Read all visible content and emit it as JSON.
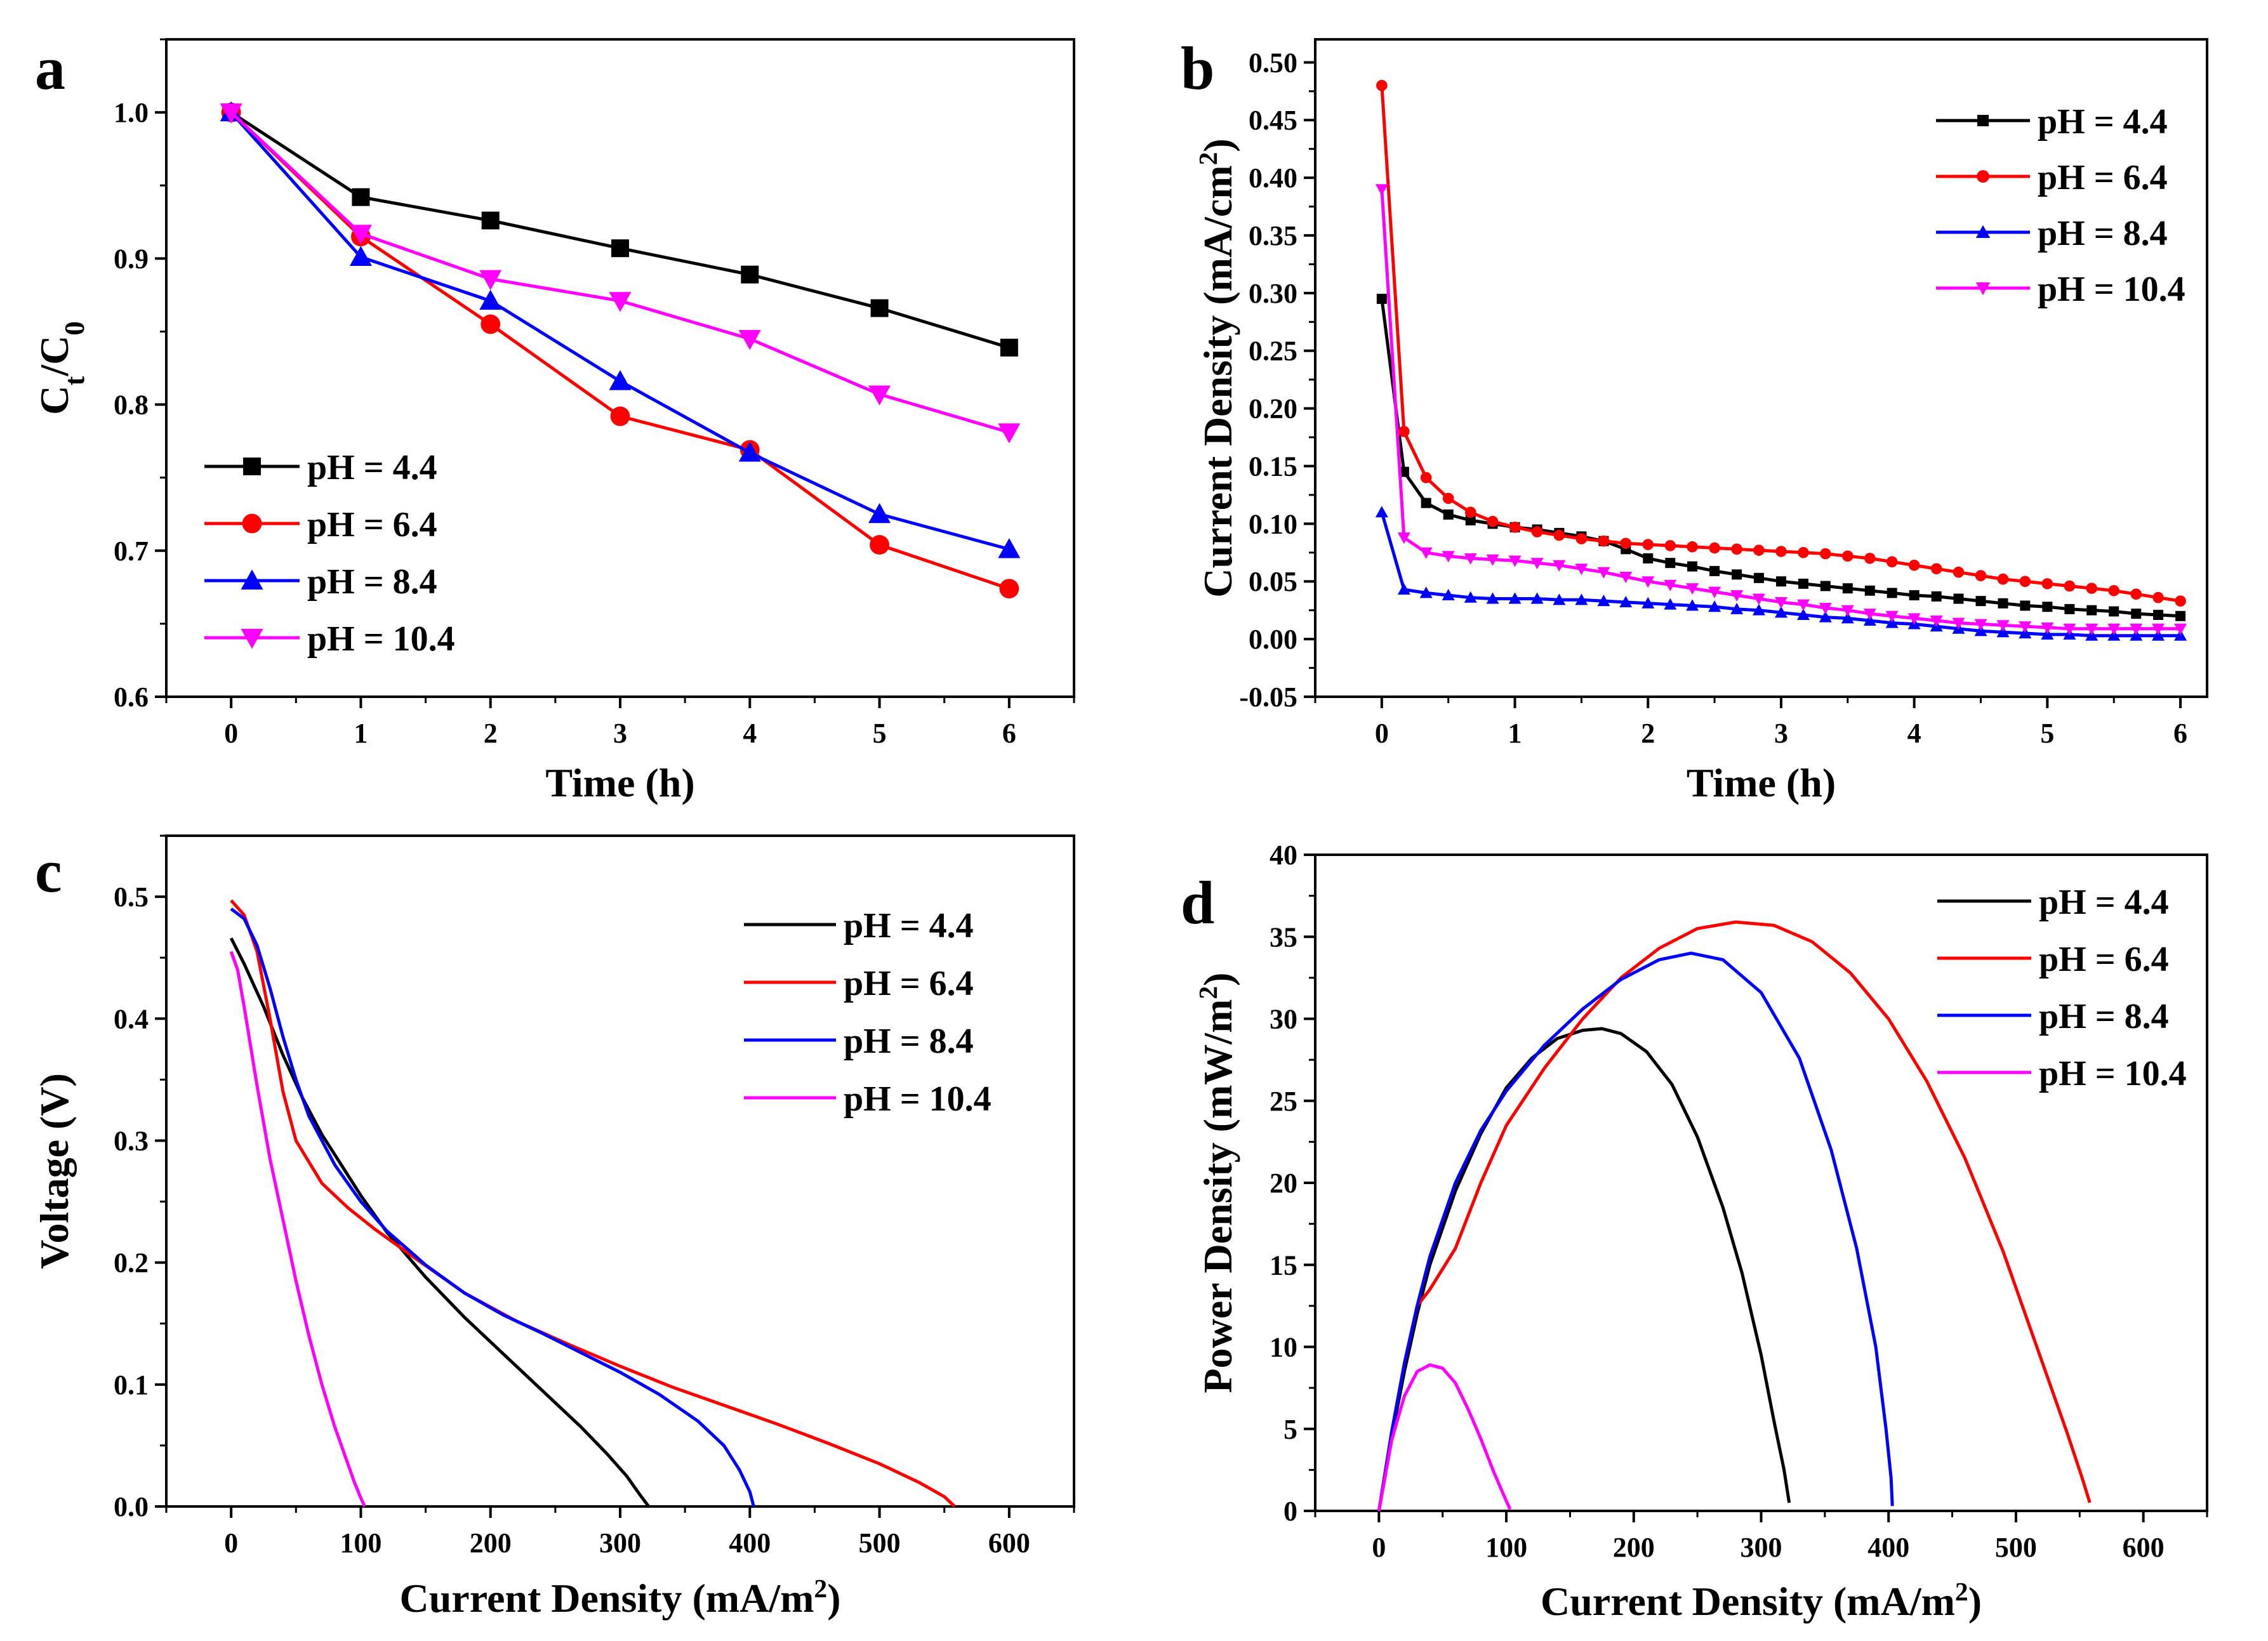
{
  "chart_data": [
    {
      "id": "a",
      "panel_letter": "a",
      "type": "line",
      "xlabel": "Time (h)",
      "ylabel": {
        "base": "C",
        "sub1": "t",
        "sep": "/C",
        "sub2": "0"
      },
      "xlim": [
        -0.5,
        6.5
      ],
      "ylim": [
        0.6,
        1.05
      ],
      "xticks": [
        0,
        1,
        2,
        3,
        4,
        5,
        6
      ],
      "yticks": [
        0.6,
        0.7,
        0.8,
        0.9,
        1.0
      ],
      "ytick_labels": [
        "0.6",
        "0.7",
        "0.8",
        "0.9",
        "1.0"
      ],
      "legend_position": "bottom-left",
      "series": [
        {
          "name": "pH = 4.4",
          "color": "#000000",
          "marker": "square",
          "x": [
            0,
            1,
            2,
            3,
            4,
            5,
            6
          ],
          "y": [
            1.0,
            0.942,
            0.926,
            0.907,
            0.889,
            0.866,
            0.839
          ]
        },
        {
          "name": "pH = 6.4",
          "color": "#ff0000",
          "marker": "circle",
          "x": [
            0,
            1,
            2,
            3,
            4,
            5,
            6
          ],
          "y": [
            1.0,
            0.915,
            0.855,
            0.792,
            0.769,
            0.704,
            0.674
          ]
        },
        {
          "name": "pH = 8.4",
          "color": "#0000ff",
          "marker": "triangle-up",
          "x": [
            0,
            1,
            2,
            3,
            4,
            5,
            6
          ],
          "y": [
            1.0,
            0.901,
            0.871,
            0.816,
            0.767,
            0.725,
            0.701
          ]
        },
        {
          "name": "pH = 10.4",
          "color": "#ff00ff",
          "marker": "triangle-down",
          "x": [
            0,
            1,
            2,
            3,
            4,
            5,
            6
          ],
          "y": [
            1.0,
            0.917,
            0.886,
            0.871,
            0.845,
            0.807,
            0.781
          ]
        }
      ]
    },
    {
      "id": "b",
      "panel_letter": "b",
      "type": "line",
      "xlabel": "Time (h)",
      "ylabel": {
        "base": "Current Density (mA/cm",
        "sup": "2",
        "end": ")"
      },
      "xlim": [
        -0.5,
        6.2
      ],
      "ylim": [
        -0.05,
        0.52
      ],
      "xticks": [
        0,
        1,
        2,
        3,
        4,
        5,
        6
      ],
      "yticks": [
        -0.05,
        0.0,
        0.05,
        0.1,
        0.15,
        0.2,
        0.25,
        0.3,
        0.35,
        0.4,
        0.45,
        0.5
      ],
      "ytick_labels": [
        "-0.05",
        "0.00",
        "0.05",
        "0.10",
        "0.15",
        "0.20",
        "0.25",
        "0.30",
        "0.35",
        "0.40",
        "0.45",
        "0.50"
      ],
      "legend_position": "top-right",
      "series": [
        {
          "name": "pH = 4.4",
          "color": "#000000",
          "marker": "square",
          "x": [
            0,
            0.167,
            0.333,
            0.5,
            0.667,
            0.833,
            1.0,
            1.167,
            1.333,
            1.5,
            1.667,
            1.833,
            2.0,
            2.167,
            2.333,
            2.5,
            2.667,
            2.833,
            3.0,
            3.167,
            3.333,
            3.5,
            3.667,
            3.833,
            4.0,
            4.167,
            4.333,
            4.5,
            4.667,
            4.833,
            5.0,
            5.167,
            5.333,
            5.5,
            5.667,
            5.833,
            6.0
          ],
          "y": [
            0.295,
            0.145,
            0.118,
            0.108,
            0.103,
            0.1,
            0.097,
            0.095,
            0.092,
            0.089,
            0.085,
            0.078,
            0.07,
            0.066,
            0.063,
            0.059,
            0.056,
            0.053,
            0.05,
            0.048,
            0.046,
            0.044,
            0.042,
            0.04,
            0.038,
            0.037,
            0.035,
            0.033,
            0.031,
            0.029,
            0.028,
            0.026,
            0.025,
            0.024,
            0.022,
            0.021,
            0.02
          ]
        },
        {
          "name": "pH = 6.4",
          "color": "#ff0000",
          "marker": "circle",
          "x": [
            0,
            0.167,
            0.333,
            0.5,
            0.667,
            0.833,
            1.0,
            1.167,
            1.333,
            1.5,
            1.667,
            1.833,
            2.0,
            2.167,
            2.333,
            2.5,
            2.667,
            2.833,
            3.0,
            3.167,
            3.333,
            3.5,
            3.667,
            3.833,
            4.0,
            4.167,
            4.333,
            4.5,
            4.667,
            4.833,
            5.0,
            5.167,
            5.333,
            5.5,
            5.667,
            5.833,
            6.0
          ],
          "y": [
            0.48,
            0.18,
            0.14,
            0.122,
            0.11,
            0.102,
            0.097,
            0.093,
            0.09,
            0.087,
            0.085,
            0.083,
            0.082,
            0.081,
            0.08,
            0.079,
            0.078,
            0.077,
            0.076,
            0.075,
            0.074,
            0.072,
            0.07,
            0.067,
            0.064,
            0.061,
            0.058,
            0.055,
            0.052,
            0.05,
            0.048,
            0.046,
            0.044,
            0.042,
            0.039,
            0.036,
            0.033
          ]
        },
        {
          "name": "pH = 8.4",
          "color": "#0000ff",
          "marker": "triangle-up",
          "x": [
            0,
            0.167,
            0.333,
            0.5,
            0.667,
            0.833,
            1.0,
            1.167,
            1.333,
            1.5,
            1.667,
            1.833,
            2.0,
            2.167,
            2.333,
            2.5,
            2.667,
            2.833,
            3.0,
            3.167,
            3.333,
            3.5,
            3.667,
            3.833,
            4.0,
            4.167,
            4.333,
            4.5,
            4.667,
            4.833,
            5.0,
            5.167,
            5.333,
            5.5,
            5.667,
            5.833,
            6.0
          ],
          "y": [
            0.11,
            0.043,
            0.04,
            0.038,
            0.036,
            0.035,
            0.035,
            0.035,
            0.034,
            0.034,
            0.033,
            0.032,
            0.031,
            0.03,
            0.029,
            0.028,
            0.026,
            0.025,
            0.023,
            0.021,
            0.019,
            0.018,
            0.016,
            0.014,
            0.013,
            0.011,
            0.009,
            0.007,
            0.006,
            0.005,
            0.004,
            0.004,
            0.003,
            0.003,
            0.003,
            0.003,
            0.003
          ]
        },
        {
          "name": "pH = 10.4",
          "color": "#ff00ff",
          "marker": "triangle-down",
          "x": [
            0,
            0.167,
            0.333,
            0.5,
            0.667,
            0.833,
            1.0,
            1.167,
            1.333,
            1.5,
            1.667,
            1.833,
            2.0,
            2.167,
            2.333,
            2.5,
            2.667,
            2.833,
            3.0,
            3.167,
            3.333,
            3.5,
            3.667,
            3.833,
            4.0,
            4.167,
            4.333,
            4.5,
            4.667,
            4.833,
            5.0,
            5.167,
            5.333,
            5.5,
            5.667,
            5.833,
            6.0
          ],
          "y": [
            0.39,
            0.088,
            0.075,
            0.072,
            0.07,
            0.069,
            0.068,
            0.066,
            0.064,
            0.061,
            0.058,
            0.054,
            0.05,
            0.047,
            0.044,
            0.041,
            0.038,
            0.035,
            0.032,
            0.03,
            0.027,
            0.025,
            0.022,
            0.02,
            0.018,
            0.016,
            0.014,
            0.013,
            0.012,
            0.011,
            0.01,
            0.009,
            0.009,
            0.009,
            0.009,
            0.009,
            0.009
          ]
        }
      ]
    },
    {
      "id": "c",
      "panel_letter": "c",
      "type": "line",
      "xlabel": {
        "base": "Current Density (mA/m",
        "sup": "2",
        "end": ")"
      },
      "ylabel": "Voltage (V)",
      "xlim": [
        -50,
        650
      ],
      "ylim": [
        0,
        0.55
      ],
      "xticks": [
        0,
        100,
        200,
        300,
        400,
        500,
        600
      ],
      "yticks": [
        0.0,
        0.1,
        0.2,
        0.3,
        0.4,
        0.5
      ],
      "ytick_labels": [
        "0.0",
        "0.1",
        "0.2",
        "0.3",
        "0.4",
        "0.5"
      ],
      "legend_position": "top-right",
      "series": [
        {
          "name": "pH = 4.4",
          "color": "#000000",
          "x": [
            0,
            10,
            25,
            40,
            55,
            70,
            85,
            100,
            120,
            150,
            180,
            210,
            240,
            270,
            290,
            305,
            315,
            322
          ],
          "y": [
            0.466,
            0.445,
            0.41,
            0.37,
            0.335,
            0.305,
            0.28,
            0.255,
            0.225,
            0.188,
            0.155,
            0.125,
            0.095,
            0.065,
            0.043,
            0.025,
            0.01,
            0.0
          ]
        },
        {
          "name": "pH = 6.4",
          "color": "#ff0000",
          "x": [
            0,
            10,
            20,
            30,
            40,
            50,
            70,
            90,
            110,
            140,
            180,
            220,
            260,
            300,
            340,
            380,
            420,
            460,
            500,
            530,
            550,
            558
          ],
          "y": [
            0.497,
            0.485,
            0.455,
            0.4,
            0.34,
            0.3,
            0.265,
            0.245,
            0.228,
            0.205,
            0.175,
            0.152,
            0.133,
            0.115,
            0.098,
            0.083,
            0.068,
            0.052,
            0.035,
            0.02,
            0.008,
            0.0
          ]
        },
        {
          "name": "pH = 8.4",
          "color": "#0000ff",
          "x": [
            0,
            10,
            20,
            30,
            40,
            50,
            60,
            80,
            100,
            120,
            150,
            180,
            210,
            240,
            270,
            300,
            330,
            360,
            380,
            392,
            400,
            403
          ],
          "y": [
            0.49,
            0.482,
            0.46,
            0.425,
            0.385,
            0.35,
            0.32,
            0.28,
            0.25,
            0.226,
            0.198,
            0.175,
            0.157,
            0.142,
            0.126,
            0.11,
            0.092,
            0.07,
            0.05,
            0.03,
            0.012,
            0.0
          ]
        },
        {
          "name": "pH = 10.4",
          "color": "#ff00ff",
          "x": [
            0,
            5,
            10,
            20,
            30,
            40,
            50,
            60,
            70,
            80,
            90,
            95,
            100,
            103
          ],
          "y": [
            0.455,
            0.44,
            0.41,
            0.345,
            0.285,
            0.235,
            0.185,
            0.14,
            0.1,
            0.065,
            0.035,
            0.02,
            0.007,
            0.0
          ]
        }
      ]
    },
    {
      "id": "d",
      "panel_letter": "d",
      "type": "line",
      "xlabel": {
        "base": "Current Density (mA/m",
        "sup": "2",
        "end": ")"
      },
      "ylabel": {
        "base": "Power Density (mW/m",
        "sup": "2",
        "end": ")"
      },
      "xlim": [
        -50,
        650
      ],
      "ylim": [
        0,
        40
      ],
      "xticks": [
        0,
        100,
        200,
        300,
        400,
        500,
        600
      ],
      "yticks": [
        0,
        5,
        10,
        15,
        20,
        25,
        30,
        35,
        40
      ],
      "ytick_labels": [
        "0",
        "5",
        "10",
        "15",
        "20",
        "25",
        "30",
        "35",
        "40"
      ],
      "legend_position": "top-right",
      "series": [
        {
          "name": "pH = 4.4",
          "color": "#000000",
          "x": [
            0,
            10,
            20,
            30,
            40,
            60,
            80,
            100,
            120,
            140,
            160,
            175,
            190,
            210,
            230,
            250,
            270,
            285,
            300,
            310,
            318,
            322
          ],
          "y": [
            0,
            4.5,
            8.5,
            12,
            15,
            19.5,
            23,
            25.8,
            27.6,
            28.8,
            29.3,
            29.4,
            29.1,
            28.0,
            26.0,
            22.8,
            18.5,
            14.5,
            9.5,
            5.5,
            2.5,
            0.5
          ]
        },
        {
          "name": "pH = 6.4",
          "color": "#ff0000",
          "x": [
            0,
            10,
            20,
            30,
            40,
            60,
            80,
            100,
            130,
            160,
            190,
            220,
            250,
            280,
            310,
            340,
            370,
            400,
            430,
            460,
            490,
            520,
            540,
            552,
            558
          ],
          "y": [
            0,
            4.8,
            9.0,
            12.5,
            13.5,
            16.0,
            20.0,
            23.5,
            27.0,
            30.0,
            32.5,
            34.3,
            35.5,
            35.9,
            35.7,
            34.7,
            32.8,
            30.0,
            26.2,
            21.5,
            15.8,
            9.2,
            4.8,
            2.0,
            0.5
          ]
        },
        {
          "name": "pH = 8.4",
          "color": "#0000ff",
          "x": [
            0,
            10,
            20,
            30,
            40,
            60,
            80,
            100,
            130,
            160,
            190,
            220,
            245,
            270,
            300,
            330,
            355,
            375,
            390,
            398,
            402,
            403
          ],
          "y": [
            0,
            4.8,
            9.0,
            12.5,
            15.5,
            20.0,
            23.2,
            25.6,
            28.4,
            30.6,
            32.4,
            33.6,
            34.0,
            33.6,
            31.6,
            27.6,
            22.0,
            16.0,
            10.0,
            5.0,
            2.0,
            0.3
          ]
        },
        {
          "name": "pH = 10.4",
          "color": "#ff00ff",
          "x": [
            0,
            10,
            20,
            30,
            40,
            50,
            60,
            70,
            80,
            90,
            100,
            103
          ],
          "y": [
            0,
            4.3,
            7.0,
            8.5,
            8.9,
            8.7,
            7.8,
            6.2,
            4.4,
            2.4,
            0.6,
            0.1
          ]
        }
      ]
    }
  ]
}
